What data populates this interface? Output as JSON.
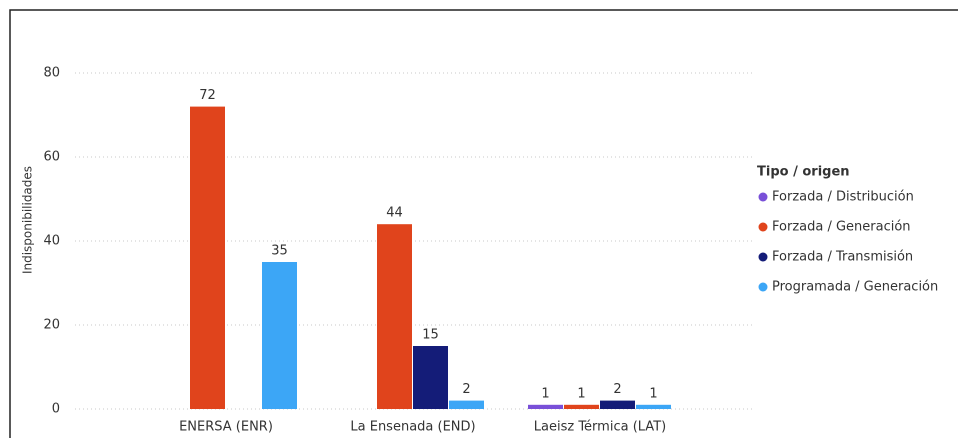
{
  "chart_data": {
    "type": "bar",
    "y_label": "Indisponibilidades",
    "legend_title": "Tipo / origen",
    "categories": [
      "ENERSA (ENR)",
      "La Ensenada (END)",
      "Laeisz Térmica (LAT)"
    ],
    "series": [
      {
        "name": "Forzada / Distribución",
        "color": "#7950d8",
        "values": [
          null,
          null,
          1
        ]
      },
      {
        "name": "Forzada / Generación",
        "color": "#e0441c",
        "values": [
          72,
          44,
          1
        ]
      },
      {
        "name": "Forzada / Transmisión",
        "color": "#141c78",
        "values": [
          null,
          15,
          2
        ]
      },
      {
        "name": "Programada / Generación",
        "color": "#3ca6f6",
        "values": [
          35,
          2,
          1
        ]
      }
    ],
    "ylim": [
      0,
      85
    ],
    "yticks": [
      0,
      20,
      40,
      60,
      80
    ],
    "grid": true,
    "legend": "right"
  }
}
